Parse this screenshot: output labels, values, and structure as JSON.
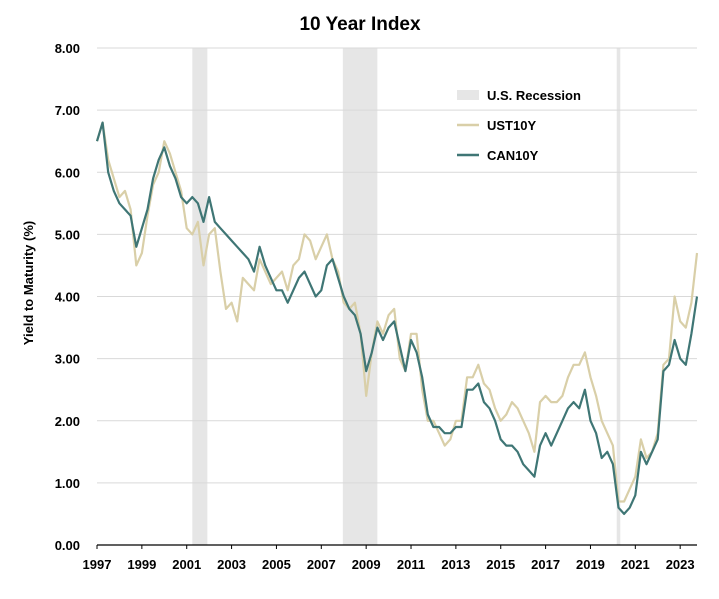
{
  "chart_data": {
    "type": "line",
    "title": "10 Year Index",
    "xlabel": "",
    "ylabel": "Yield to Maturity (%)",
    "xlim": [
      1997.0,
      2023.75
    ],
    "ylim": [
      0,
      8
    ],
    "y_ticks": [
      "0.00",
      "1.00",
      "2.00",
      "3.00",
      "4.00",
      "5.00",
      "6.00",
      "7.00",
      "8.00"
    ],
    "x_ticks": [
      "1997",
      "1999",
      "2001",
      "2003",
      "2005",
      "2007",
      "2009",
      "2011",
      "2013",
      "2015",
      "2017",
      "2019",
      "2021",
      "2023"
    ],
    "grid": "horizontal",
    "legend_position": "top-right",
    "recessions": {
      "name": "U.S. Recession",
      "color": "#e6e6e6",
      "periods": [
        [
          2001.25,
          2001.92
        ],
        [
          2007.96,
          2009.5
        ],
        [
          2020.17,
          2020.33
        ]
      ]
    },
    "series": [
      {
        "name": "UST10Y",
        "color": "#d9cfa8",
        "x": [
          1997.0,
          1997.25,
          1997.5,
          1997.75,
          1998.0,
          1998.25,
          1998.5,
          1998.75,
          1999.0,
          1999.25,
          1999.5,
          1999.75,
          2000.0,
          2000.25,
          2000.5,
          2000.75,
          2001.0,
          2001.25,
          2001.5,
          2001.75,
          2002.0,
          2002.25,
          2002.5,
          2002.75,
          2003.0,
          2003.25,
          2003.5,
          2003.75,
          2004.0,
          2004.25,
          2004.5,
          2004.75,
          2005.0,
          2005.25,
          2005.5,
          2005.75,
          2006.0,
          2006.25,
          2006.5,
          2006.75,
          2007.0,
          2007.25,
          2007.5,
          2007.75,
          2008.0,
          2008.25,
          2008.5,
          2008.75,
          2009.0,
          2009.25,
          2009.5,
          2009.75,
          2010.0,
          2010.25,
          2010.5,
          2010.75,
          2011.0,
          2011.25,
          2011.5,
          2011.75,
          2012.0,
          2012.25,
          2012.5,
          2012.75,
          2013.0,
          2013.25,
          2013.5,
          2013.75,
          2014.0,
          2014.25,
          2014.5,
          2014.75,
          2015.0,
          2015.25,
          2015.5,
          2015.75,
          2016.0,
          2016.25,
          2016.5,
          2016.75,
          2017.0,
          2017.25,
          2017.5,
          2017.75,
          2018.0,
          2018.25,
          2018.5,
          2018.75,
          2019.0,
          2019.25,
          2019.5,
          2019.75,
          2020.0,
          2020.25,
          2020.5,
          2020.75,
          2021.0,
          2021.25,
          2021.5,
          2021.75,
          2022.0,
          2022.25,
          2022.5,
          2022.75,
          2023.0,
          2023.25,
          2023.5,
          2023.75
        ],
        "values": [
          6.5,
          6.8,
          6.2,
          5.9,
          5.6,
          5.7,
          5.4,
          4.5,
          4.7,
          5.3,
          5.8,
          6.0,
          6.5,
          6.3,
          6.0,
          5.7,
          5.1,
          5.0,
          5.2,
          4.5,
          5.0,
          5.1,
          4.4,
          3.8,
          3.9,
          3.6,
          4.3,
          4.2,
          4.1,
          4.6,
          4.4,
          4.2,
          4.3,
          4.4,
          4.1,
          4.5,
          4.6,
          5.0,
          4.9,
          4.6,
          4.8,
          5.0,
          4.6,
          4.4,
          3.9,
          3.8,
          3.9,
          3.4,
          2.4,
          3.1,
          3.6,
          3.4,
          3.7,
          3.8,
          3.0,
          2.8,
          3.4,
          3.4,
          2.5,
          2.0,
          2.0,
          1.8,
          1.6,
          1.7,
          2.0,
          2.0,
          2.7,
          2.7,
          2.9,
          2.6,
          2.5,
          2.2,
          2.0,
          2.1,
          2.3,
          2.2,
          2.0,
          1.8,
          1.5,
          2.3,
          2.4,
          2.3,
          2.3,
          2.4,
          2.7,
          2.9,
          2.9,
          3.1,
          2.7,
          2.4,
          2.0,
          1.8,
          1.6,
          0.7,
          0.7,
          0.9,
          1.1,
          1.7,
          1.4,
          1.5,
          1.8,
          2.9,
          3.0,
          4.0,
          3.6,
          3.5,
          3.9,
          4.7
        ]
      },
      {
        "name": "CAN10Y",
        "color": "#3f7675",
        "x": [
          1997.0,
          1997.25,
          1997.5,
          1997.75,
          1998.0,
          1998.25,
          1998.5,
          1998.75,
          1999.0,
          1999.25,
          1999.5,
          1999.75,
          2000.0,
          2000.25,
          2000.5,
          2000.75,
          2001.0,
          2001.25,
          2001.5,
          2001.75,
          2002.0,
          2002.25,
          2002.5,
          2002.75,
          2003.0,
          2003.25,
          2003.5,
          2003.75,
          2004.0,
          2004.25,
          2004.5,
          2004.75,
          2005.0,
          2005.25,
          2005.5,
          2005.75,
          2006.0,
          2006.25,
          2006.5,
          2006.75,
          2007.0,
          2007.25,
          2007.5,
          2007.75,
          2008.0,
          2008.25,
          2008.5,
          2008.75,
          2009.0,
          2009.25,
          2009.5,
          2009.75,
          2010.0,
          2010.25,
          2010.5,
          2010.75,
          2011.0,
          2011.25,
          2011.5,
          2011.75,
          2012.0,
          2012.25,
          2012.5,
          2012.75,
          2013.0,
          2013.25,
          2013.5,
          2013.75,
          2014.0,
          2014.25,
          2014.5,
          2014.75,
          2015.0,
          2015.25,
          2015.5,
          2015.75,
          2016.0,
          2016.25,
          2016.5,
          2016.75,
          2017.0,
          2017.25,
          2017.5,
          2017.75,
          2018.0,
          2018.25,
          2018.5,
          2018.75,
          2019.0,
          2019.25,
          2019.5,
          2019.75,
          2020.0,
          2020.25,
          2020.5,
          2020.75,
          2021.0,
          2021.25,
          2021.5,
          2021.75,
          2022.0,
          2022.25,
          2022.5,
          2022.75,
          2023.0,
          2023.25,
          2023.5,
          2023.75
        ],
        "values": [
          6.5,
          6.8,
          6.0,
          5.7,
          5.5,
          5.4,
          5.3,
          4.8,
          5.1,
          5.4,
          5.9,
          6.2,
          6.4,
          6.1,
          5.9,
          5.6,
          5.5,
          5.6,
          5.5,
          5.2,
          5.6,
          5.2,
          5.1,
          5.0,
          4.9,
          4.8,
          4.7,
          4.6,
          4.4,
          4.8,
          4.5,
          4.3,
          4.1,
          4.1,
          3.9,
          4.1,
          4.3,
          4.4,
          4.2,
          4.0,
          4.1,
          4.5,
          4.6,
          4.3,
          4.0,
          3.8,
          3.7,
          3.4,
          2.8,
          3.1,
          3.5,
          3.3,
          3.5,
          3.6,
          3.2,
          2.8,
          3.3,
          3.1,
          2.7,
          2.1,
          1.9,
          1.9,
          1.8,
          1.8,
          1.9,
          1.9,
          2.5,
          2.5,
          2.6,
          2.3,
          2.2,
          2.0,
          1.7,
          1.6,
          1.6,
          1.5,
          1.3,
          1.2,
          1.1,
          1.6,
          1.8,
          1.6,
          1.8,
          2.0,
          2.2,
          2.3,
          2.2,
          2.5,
          2.0,
          1.8,
          1.4,
          1.5,
          1.3,
          0.6,
          0.5,
          0.6,
          0.8,
          1.5,
          1.3,
          1.5,
          1.7,
          2.8,
          2.9,
          3.3,
          3.0,
          2.9,
          3.4,
          4.0
        ]
      }
    ]
  }
}
